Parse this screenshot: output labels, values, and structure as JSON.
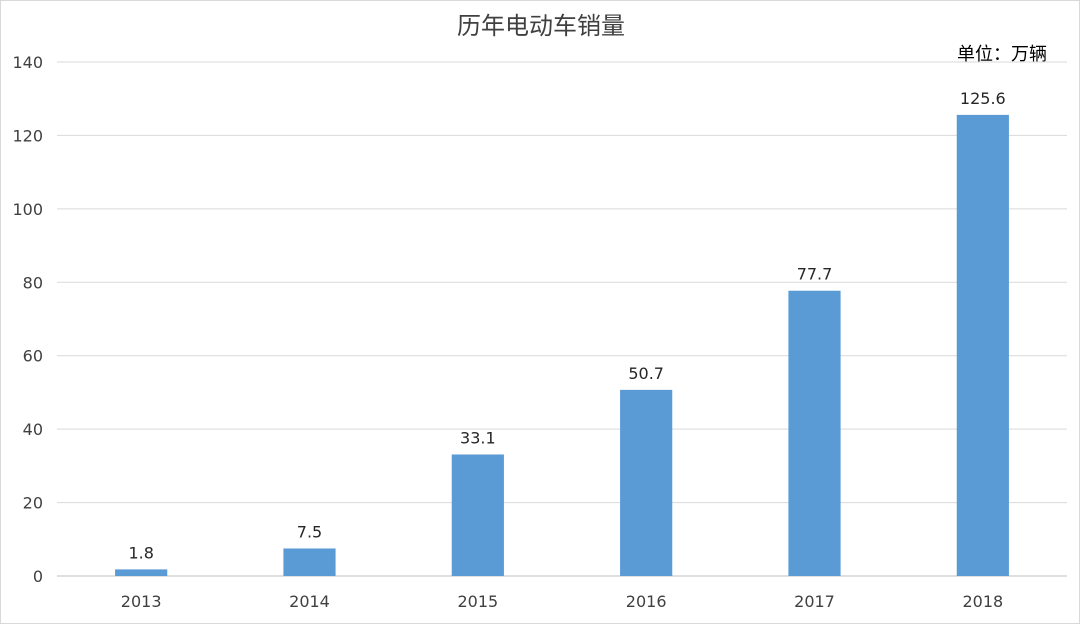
{
  "chart_data": {
    "type": "bar",
    "title": "历年电动车销量",
    "unit_label": "单位：万辆",
    "xlabel": "",
    "ylabel": "",
    "categories": [
      "2013",
      "2014",
      "2015",
      "2016",
      "2017",
      "2018"
    ],
    "values": [
      1.8,
      7.5,
      33.1,
      50.7,
      77.7,
      125.6
    ],
    "data_labels": [
      "1.8",
      "7.5",
      "33.1",
      "50.7",
      "77.7",
      "125.6"
    ],
    "ylim": [
      0,
      140
    ],
    "yticks": [
      "0",
      "20",
      "40",
      "60",
      "80",
      "100",
      "120",
      "140"
    ],
    "ytick_values": [
      0,
      20,
      40,
      60,
      80,
      100,
      120,
      140
    ],
    "grid": true,
    "legend": "none",
    "bar_color": "#5B9BD5"
  }
}
